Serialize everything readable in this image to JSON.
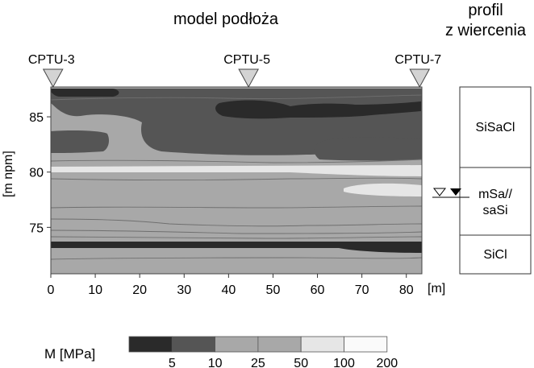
{
  "titles": {
    "model": "model podłoża",
    "profile_line1": "profil",
    "profile_line2": "z wiercenia"
  },
  "cptu_markers": [
    {
      "label": "CPTU-3",
      "x": 0.5
    },
    {
      "label": "CPTU-5",
      "x": 44.5
    },
    {
      "label": "CPTU-7",
      "x": 83
    }
  ],
  "axes": {
    "x_label": "[m]",
    "x_ticks": [
      0,
      10,
      20,
      30,
      40,
      50,
      60,
      70,
      80
    ],
    "x_range": [
      0,
      83.5
    ],
    "y_label": "[m npm]",
    "y_ticks": [
      75,
      80,
      85
    ],
    "y_range": [
      70.8,
      87.7
    ]
  },
  "legend": {
    "title": "M [MPa]",
    "ticks": [
      "5",
      "10",
      "25",
      "50",
      "100",
      "200"
    ],
    "colors": [
      "#2a2a2a",
      "#555555",
      "#a8a8a8",
      "#a8a8a8",
      "#e6e6e6",
      "#fafafa"
    ]
  },
  "profile": {
    "layers": [
      {
        "name": "SiSaCl",
        "top": 87.7,
        "bottom": 80.8
      },
      {
        "name_line1": "mSa//",
        "name_line2": "saSi",
        "top": 80.8,
        "bottom": 75.3
      },
      {
        "name": "SiCl",
        "top": 75.3,
        "bottom": 70.8
      }
    ],
    "water_level": 77.8
  },
  "colors": {
    "darkest": "#2a2a2a",
    "dark": "#555555",
    "mid": "#a8a8a8",
    "light": "#e6e6e6",
    "lightest": "#fafafa",
    "contour": "#6f6f6f"
  }
}
